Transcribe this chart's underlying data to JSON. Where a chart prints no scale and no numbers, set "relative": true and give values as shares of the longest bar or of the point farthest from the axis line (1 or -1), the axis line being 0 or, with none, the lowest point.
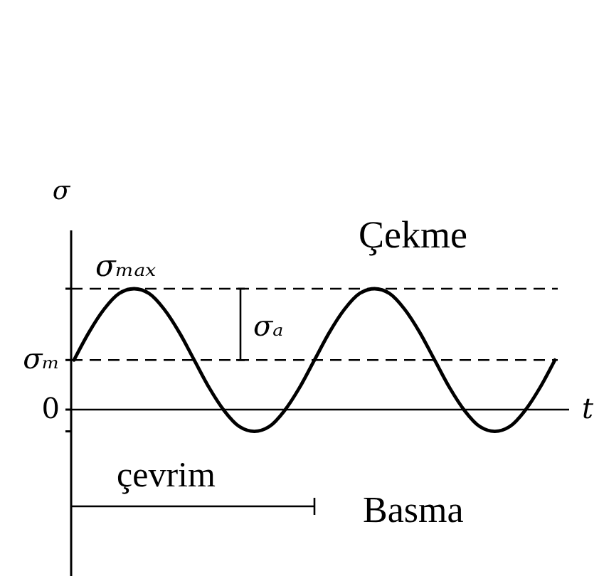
{
  "chart_data": {
    "type": "line",
    "relative": true,
    "xlabel": "t",
    "ylabel": "σ",
    "categories": [
      null,
      null,
      null,
      null,
      null,
      null,
      null,
      null,
      null,
      null,
      null,
      null,
      null,
      null,
      null,
      null,
      null,
      null,
      null,
      null,
      null,
      null,
      null,
      null,
      null,
      null,
      null,
      null,
      null,
      null,
      null,
      null,
      null
    ],
    "series": [
      {
        "color": "#000000",
        "values": [
          0.41,
          0.64,
          0.83,
          0.96,
          1.0,
          0.96,
          0.83,
          0.64,
          0.41,
          0.18,
          -0.01,
          -0.14,
          -0.18,
          -0.14,
          -0.01,
          0.18,
          0.41,
          0.64,
          0.83,
          0.96,
          1.0,
          0.96,
          0.83,
          0.64,
          0.41,
          0.18,
          -0.01,
          -0.14,
          -0.18,
          -0.14,
          -0.01,
          0.18,
          0.41
        ]
      }
    ],
    "ref_lines": [
      {
        "axis": "y",
        "value": 1,
        "label": "σₘₐₓ",
        "line_style": "dashed",
        "color": "#000000"
      },
      {
        "axis": "y",
        "value": 0.41,
        "label": "σₘ",
        "line_style": "dashed",
        "color": "#000000"
      },
      {
        "axis": "y",
        "value": 0,
        "label": "0",
        "line_style": "solid",
        "color": "#000000"
      }
    ],
    "annotations": [
      "σₐ",
      "Çekme",
      "çevrim",
      "Basma"
    ]
  }
}
